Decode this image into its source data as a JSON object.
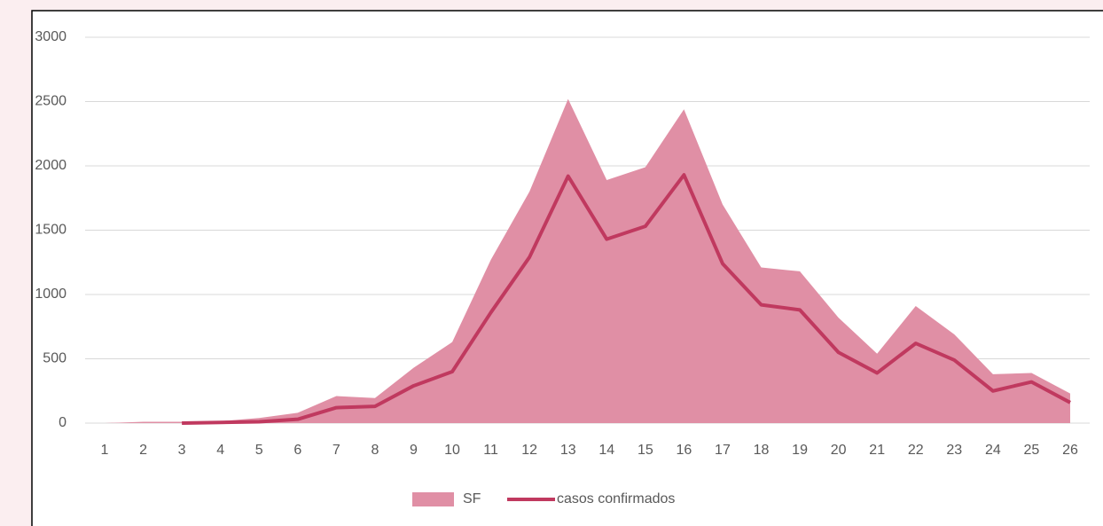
{
  "chart_data": {
    "type": "area_line",
    "categories": [
      "1",
      "2",
      "3",
      "4",
      "5",
      "6",
      "7",
      "8",
      "9",
      "10",
      "11",
      "12",
      "13",
      "14",
      "15",
      "16",
      "17",
      "18",
      "19",
      "20",
      "21",
      "22",
      "23",
      "24",
      "25",
      "26"
    ],
    "series": [
      {
        "name": "SF",
        "color": "#e08fa5",
        "kind": "area",
        "values": [
          0,
          10,
          10,
          15,
          40,
          80,
          210,
          195,
          430,
          630,
          1270,
          1800,
          2520,
          1890,
          1990,
          2440,
          1700,
          1210,
          1180,
          820,
          540,
          910,
          690,
          380,
          390,
          230
        ]
      },
      {
        "name": "casos confirmados",
        "color": "#c0395f",
        "kind": "line",
        "values": [
          null,
          null,
          0,
          5,
          10,
          30,
          120,
          130,
          290,
          400,
          860,
          1290,
          1920,
          1430,
          1530,
          1930,
          1240,
          920,
          880,
          550,
          390,
          620,
          490,
          250,
          320,
          160
        ]
      }
    ],
    "ylim": [
      0,
      3000
    ],
    "yticks": [
      0,
      500,
      1000,
      1500,
      2000,
      2500,
      3000
    ],
    "grid": true,
    "legend": "bottom"
  }
}
